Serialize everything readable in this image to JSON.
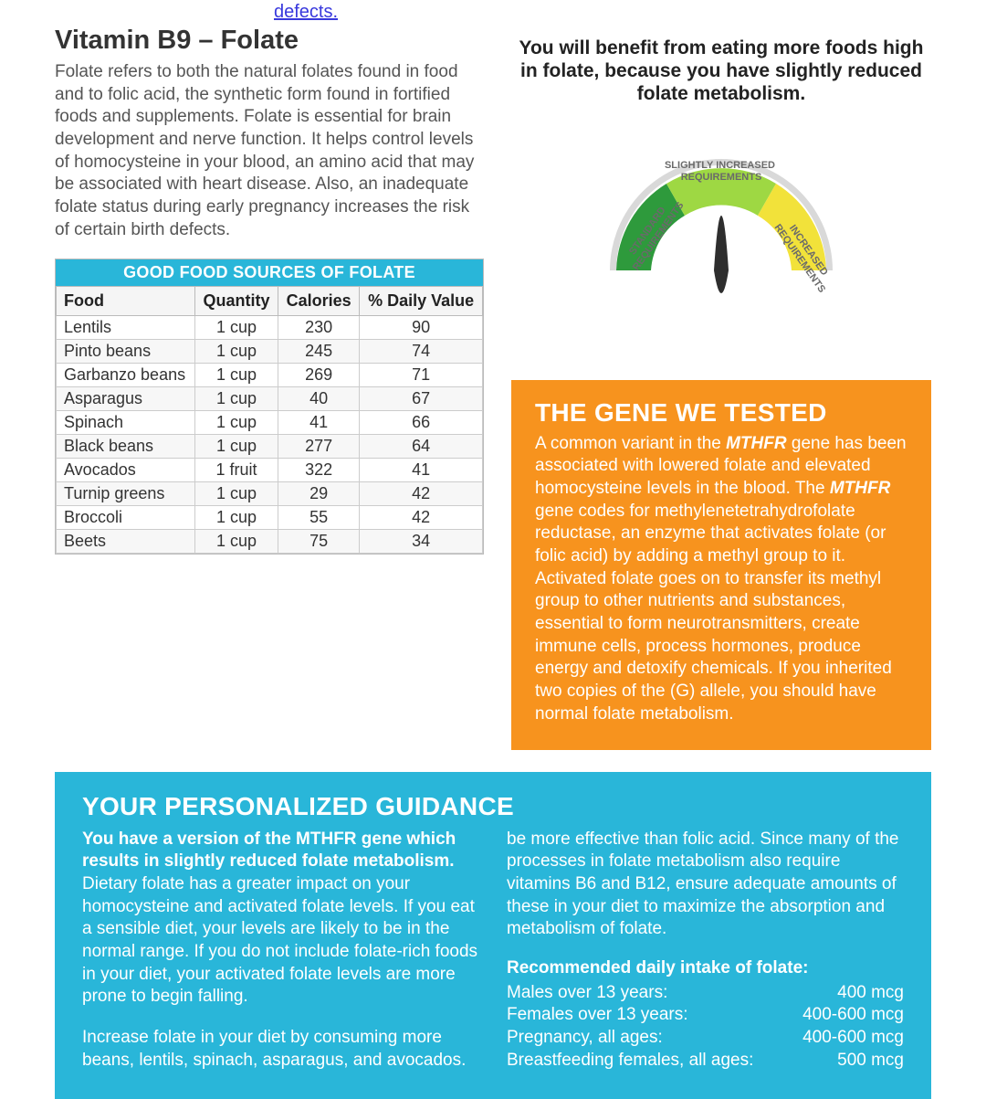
{
  "partialLink": "defects.",
  "header": {
    "title": "Vitamin B9 – Folate",
    "intro": "Folate refers to both the natural folates found in food and to folic acid, the synthetic form found in fortified foods and supplements.  Folate is essential for brain development and nerve function.  It helps control levels of homocysteine in your blood, an amino acid that may be associated with heart disease.  Also, an inadequate folate status during early pregnancy increases the risk of certain birth defects."
  },
  "foodTable": {
    "title": "GOOD FOOD SOURCES OF FOLATE",
    "columns": [
      "Food",
      "Quantity",
      "Calories",
      "% Daily Value"
    ],
    "rows": [
      [
        "Lentils",
        "1 cup",
        "230",
        "90"
      ],
      [
        "Pinto beans",
        "1 cup",
        "245",
        "74"
      ],
      [
        "Garbanzo beans",
        "1 cup",
        "269",
        "71"
      ],
      [
        "Asparagus",
        "1 cup",
        "40",
        "67"
      ],
      [
        "Spinach",
        "1 cup",
        "41",
        "66"
      ],
      [
        "Black beans",
        "1 cup",
        "277",
        "64"
      ],
      [
        "Avocados",
        "1 fruit",
        "322",
        "41"
      ],
      [
        "Turnip greens",
        "1 cup",
        "29",
        "42"
      ],
      [
        "Broccoli",
        "1 cup",
        "55",
        "42"
      ],
      [
        "Beets",
        "1 cup",
        "75",
        "34"
      ]
    ],
    "header_bg": "#29b6d9",
    "border_color": "#bbbbbb"
  },
  "benefit": "You will benefit from eating more foods high in folate, because you have slightly reduced folate metabolism.",
  "gauge": {
    "labels": [
      "STANDARD REQUIREMENTS",
      "SLIGHTLY INCREASED REQUIREMENTS",
      "INCREASED REQUIREMENTS"
    ],
    "segment_colors": [
      "#2e9a3c",
      "#9ed843",
      "#f2e23a"
    ],
    "needle_position": 0.5,
    "ring_color": "#d9d9d9",
    "needle_color": "#2e2e2e"
  },
  "geneBox": {
    "title": "THE GENE WE TESTED",
    "body_pre": "A common variant in the ",
    "gene1": "MTHFR",
    "body_mid": " gene has been associated with lowered folate and elevated homocysteine levels in the blood.  The ",
    "gene2": "MTHFR",
    "body_post": " gene codes for methylenetetrahydrofolate reductase, an enzyme that activates folate (or folic acid) by adding a methyl group to it.  Activated folate goes on to transfer its methyl group to other nutrients and substances, essential to form neurotransmitters, create immune cells, process hormones, produce energy and detoxify chemicals.  If you inherited two copies of the (G) allele, you should have normal folate metabolism.",
    "bg": "#f7931e"
  },
  "guidance": {
    "title": "YOUR PERSONALIZED GUIDANCE",
    "bg": "#29b6d9",
    "leftBold": "You have a version of the MTHFR gene which results in slightly reduced folate metabolism.",
    "left1": " Dietary folate has a greater impact on your homocysteine and activated folate levels.  If you eat a sensible diet, your levels are likely to be in the normal range.  If you do not include folate-rich foods in your diet, your activated folate levels are more prone to begin falling.",
    "left2": "Increase folate in your diet by consuming more beans, lentils, spinach, asparagus, and avocados.",
    "right1": "be more effective than folic acid.  Since many of the processes in folate metabolism also require vitamins B6 and B12, ensure adequate amounts of these in your diet to maximize the absorption and metabolism of folate.",
    "rdiTitle": "Recommended daily intake of folate:",
    "rdi": [
      {
        "label": "Males over 13 years:",
        "value": "400 mcg"
      },
      {
        "label": "Females over 13 years:",
        "value": "400-600 mcg"
      },
      {
        "label": "Pregnancy, all ages:",
        "value": "400-600 mcg"
      },
      {
        "label": "Breastfeeding females, all ages:",
        "value": "500 mcg"
      }
    ]
  }
}
